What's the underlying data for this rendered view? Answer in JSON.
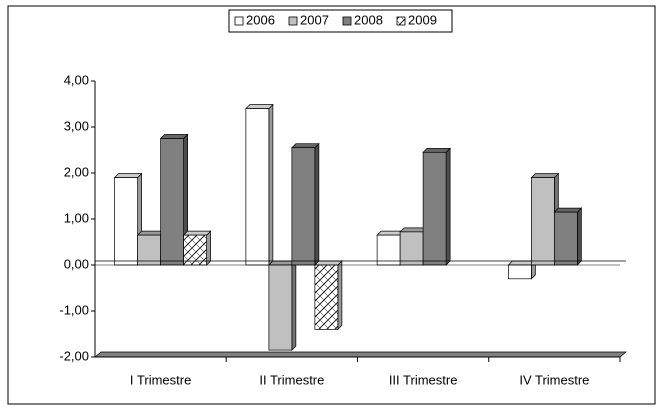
{
  "chart_data": {
    "type": "bar",
    "categories": [
      "I Trimestre",
      "II Trimestre",
      "III Trimestre",
      "IV Trimestre"
    ],
    "series": [
      {
        "name": "2006",
        "color": "#ffffff",
        "values": [
          1.9,
          3.4,
          0.65,
          -0.3
        ]
      },
      {
        "name": "2007",
        "color": "#c0c0c0",
        "values": [
          0.65,
          -1.85,
          0.72,
          1.9
        ]
      },
      {
        "name": "2008",
        "color": "#808080",
        "values": [
          2.75,
          2.55,
          2.45,
          1.15
        ]
      },
      {
        "name": "2009",
        "color": "#ffffff",
        "hatch": true,
        "values": [
          0.65,
          -1.4,
          null,
          null
        ]
      }
    ],
    "ylim": [
      -2,
      4
    ],
    "yticks": [
      {
        "value": -2,
        "label": "-2,00"
      },
      {
        "value": -1,
        "label": "-1,00"
      },
      {
        "value": 0,
        "label": "0,00"
      },
      {
        "value": 1,
        "label": "1,00"
      },
      {
        "value": 2,
        "label": "2,00"
      },
      {
        "value": 3,
        "label": "3,00"
      },
      {
        "value": 4,
        "label": "4,00"
      }
    ],
    "legend": "top"
  }
}
